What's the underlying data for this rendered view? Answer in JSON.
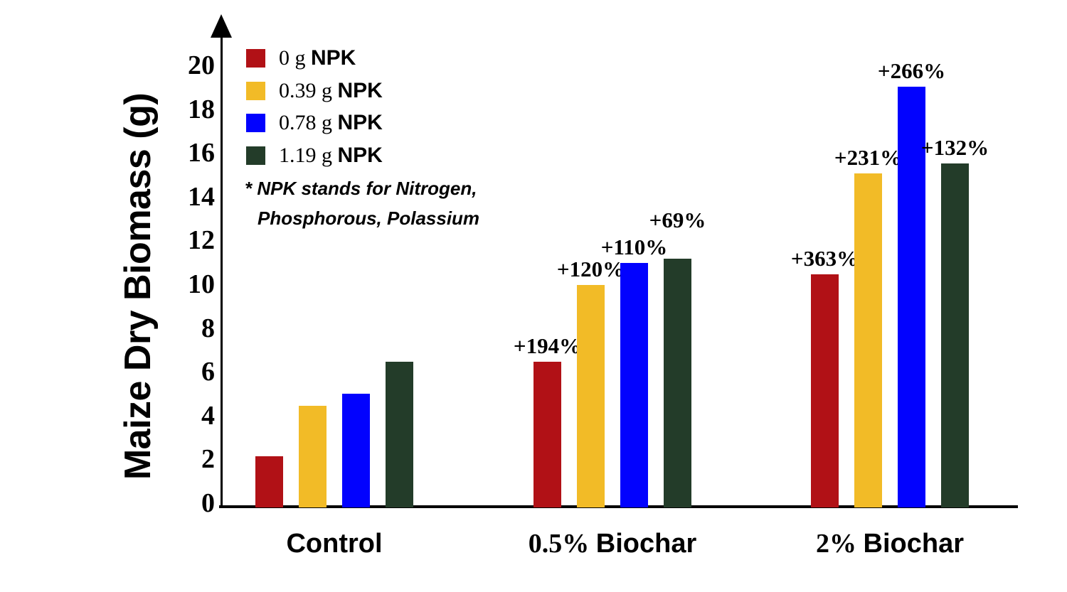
{
  "chart_data": {
    "type": "bar",
    "title": "",
    "ylabel": "Maize Dry Biomass (g)",
    "xlabel": "",
    "ylim": [
      0,
      20
    ],
    "yticks": [
      0,
      2,
      4,
      6,
      8,
      10,
      12,
      14,
      16,
      18,
      20
    ],
    "grid": false,
    "legend_position": "top-left",
    "categories": [
      {
        "num": "",
        "text": "Control"
      },
      {
        "num": "0.5% ",
        "text": "Biochar"
      },
      {
        "num": "2% ",
        "text": "Biochar"
      }
    ],
    "series": [
      {
        "label_qty": "0 g",
        "label_unit": "NPK",
        "color": "#b11116",
        "values": [
          2.3,
          6.6,
          10.55
        ],
        "annotations": [
          null,
          {
            "text": "+194%"
          },
          {
            "text": "+363%"
          }
        ]
      },
      {
        "label_qty": "0.39 g",
        "label_unit": "NPK",
        "color": "#f2bb27",
        "values": [
          4.6,
          10.05,
          15.1
        ],
        "annotations": [
          null,
          {
            "text": "+120%"
          },
          {
            "text": "+231%"
          }
        ]
      },
      {
        "label_qty": "0.78 g",
        "label_unit": "NPK",
        "color": "#0202fe",
        "values": [
          5.15,
          11.05,
          19.05
        ],
        "annotations": [
          null,
          {
            "text": "+110%"
          },
          {
            "text": "+266%"
          }
        ]
      },
      {
        "label_qty": "1.19 g",
        "label_unit": "NPK",
        "color": "#233c29",
        "values": [
          6.6,
          11.25,
          15.55
        ],
        "annotations": [
          null,
          {
            "text": "+69%",
            "dy": 32
          },
          {
            "text": "+132%"
          }
        ]
      }
    ],
    "footnote_lines": [
      "* NPK stands for Nitrogen,",
      "Phosphorous, Polassium"
    ]
  }
}
